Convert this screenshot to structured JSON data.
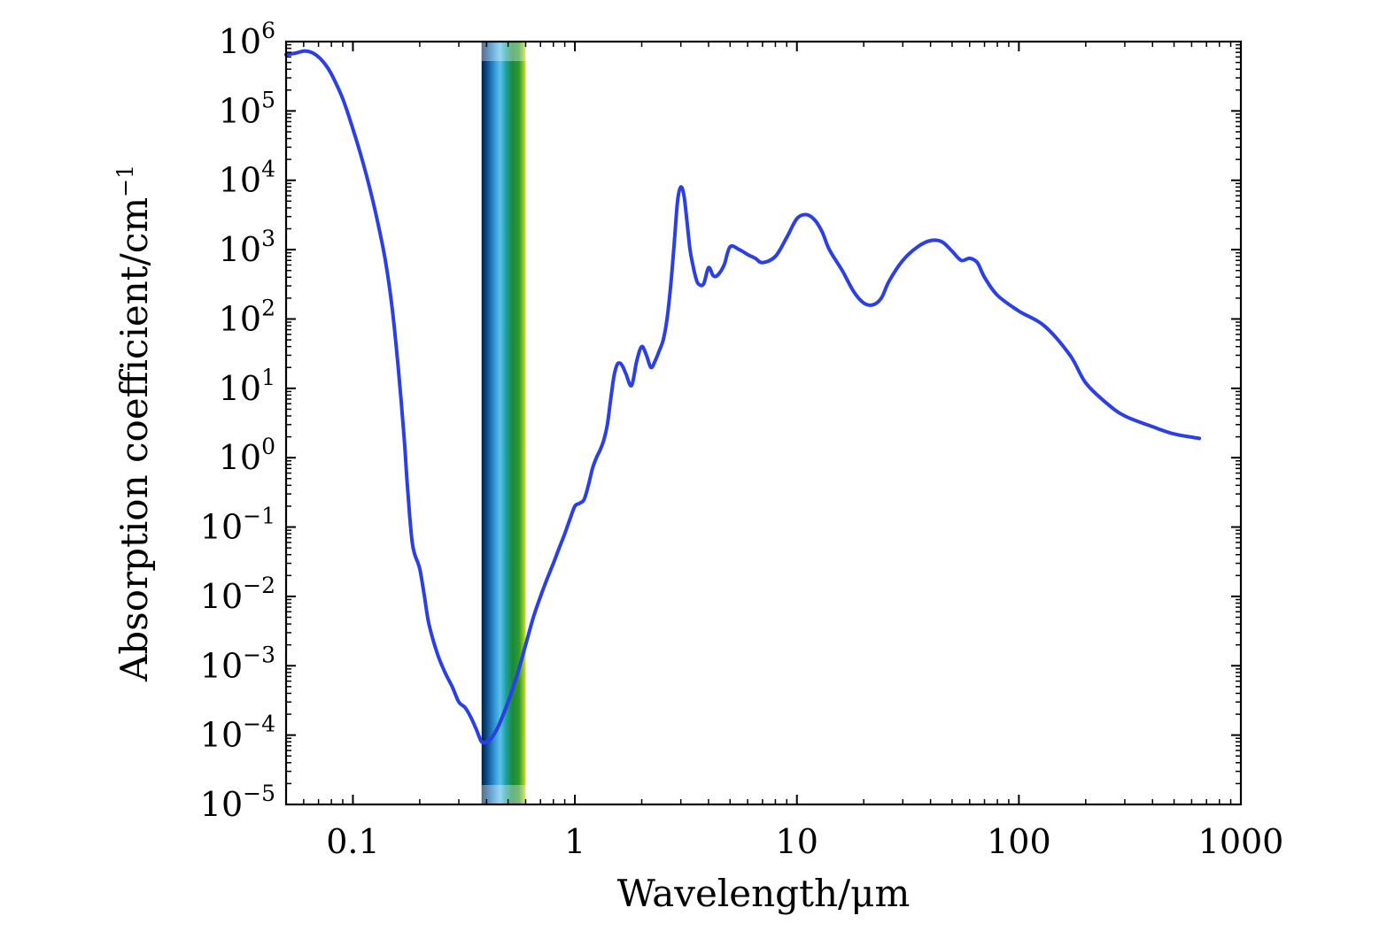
{
  "chart_data": {
    "type": "line",
    "title": "",
    "xlabel": "Wavelength/μm",
    "ylabel": "Absorption coefficient/cm",
    "ylabel_sup": "−1",
    "x_scale": "log",
    "y_scale": "log",
    "xlim": [
      0.05,
      1000
    ],
    "ylim": [
      1e-05,
      1000000
    ],
    "grid": false,
    "legend": "none",
    "x_ticks": [
      {
        "value": 0.1,
        "label": "0.1"
      },
      {
        "value": 1,
        "label": "1"
      },
      {
        "value": 10,
        "label": "10"
      },
      {
        "value": 100,
        "label": "100"
      },
      {
        "value": 1000,
        "label": "1000"
      }
    ],
    "y_ticks": [
      {
        "value": 1e-05,
        "base": "10",
        "exp": "−5"
      },
      {
        "value": 0.0001,
        "base": "10",
        "exp": "−4"
      },
      {
        "value": 0.001,
        "base": "10",
        "exp": "−3"
      },
      {
        "value": 0.01,
        "base": "10",
        "exp": "−2"
      },
      {
        "value": 0.1,
        "base": "10",
        "exp": "−1"
      },
      {
        "value": 1,
        "base": "10",
        "exp": "0"
      },
      {
        "value": 10,
        "base": "10",
        "exp": "1"
      },
      {
        "value": 100,
        "base": "10",
        "exp": "2"
      },
      {
        "value": 1000,
        "base": "10",
        "exp": "3"
      },
      {
        "value": 10000,
        "base": "10",
        "exp": "4"
      },
      {
        "value": 100000,
        "base": "10",
        "exp": "5"
      },
      {
        "value": 1000000,
        "base": "10",
        "exp": "6"
      }
    ],
    "visible_band": {
      "x_start": 0.38,
      "x_end": 0.6
    },
    "series": [
      {
        "color": "#2b3fe6",
        "x": [
          0.05,
          0.055,
          0.06,
          0.065,
          0.07,
          0.075,
          0.08,
          0.09,
          0.1,
          0.11,
          0.12,
          0.13,
          0.14,
          0.15,
          0.16,
          0.17,
          0.175,
          0.18,
          0.185,
          0.19,
          0.2,
          0.21,
          0.22,
          0.24,
          0.26,
          0.28,
          0.3,
          0.32,
          0.34,
          0.36,
          0.38,
          0.4,
          0.42,
          0.45,
          0.5,
          0.55,
          0.6,
          0.65,
          0.7,
          0.75,
          0.8,
          0.85,
          0.9,
          0.95,
          1.0,
          1.05,
          1.1,
          1.15,
          1.2,
          1.25,
          1.3,
          1.35,
          1.4,
          1.45,
          1.5,
          1.55,
          1.6,
          1.65,
          1.7,
          1.8,
          1.9,
          2.0,
          2.1,
          2.2,
          2.3,
          2.4,
          2.5,
          2.6,
          2.7,
          2.8,
          2.9,
          3.0,
          3.1,
          3.2,
          3.3,
          3.4,
          3.5,
          3.6,
          3.8,
          4.0,
          4.2,
          4.4,
          4.7,
          5.0,
          5.5,
          6.0,
          6.5,
          7.0,
          8.0,
          9.0,
          10.0,
          11.0,
          12.0,
          13.0,
          14.0,
          16.0,
          18.0,
          20.0,
          22.0,
          24.0,
          26.0,
          30.0,
          35.0,
          40.0,
          45.0,
          50.0,
          55.0,
          60.0,
          65.0,
          70.0,
          80.0,
          100.0,
          130.0,
          170.0,
          200.0,
          250.0,
          300.0,
          400.0,
          500.0,
          650.0
        ],
        "y": [
          650000,
          680000,
          730000,
          700000,
          600000,
          470000,
          340000,
          150000,
          55000,
          20000,
          7000,
          2300,
          700,
          150,
          20,
          2,
          0.5,
          0.15,
          0.06,
          0.04,
          0.025,
          0.01,
          0.004,
          0.0015,
          0.0008,
          0.0005,
          0.0003,
          0.00025,
          0.00018,
          0.00012,
          8e-05,
          8e-05,
          9e-05,
          0.00013,
          0.0003,
          0.00075,
          0.002,
          0.005,
          0.01,
          0.018,
          0.03,
          0.05,
          0.08,
          0.13,
          0.2,
          0.22,
          0.25,
          0.4,
          0.7,
          1.0,
          1.3,
          1.8,
          3.0,
          7.0,
          15.0,
          22.0,
          23.0,
          20.0,
          16.0,
          11.0,
          25.0,
          40.0,
          30.0,
          20.0,
          25.0,
          35.0,
          50.0,
          100.0,
          300.0,
          1200.0,
          5000.0,
          8000.0,
          6000.0,
          2500.0,
          1000.0,
          600.0,
          400.0,
          320.0,
          320.0,
          550.0,
          420.0,
          430.0,
          600.0,
          1100.0,
          1000.0,
          850.0,
          750.0,
          650.0,
          800.0,
          1500.0,
          2800.0,
          3200.0,
          2700.0,
          1800.0,
          1000.0,
          500.0,
          250.0,
          170.0,
          160.0,
          200.0,
          350.0,
          700.0,
          1100.0,
          1350.0,
          1300.0,
          950.0,
          700.0,
          750.0,
          650.0,
          400.0,
          220.0,
          130.0,
          80.0,
          30.0,
          12.0,
          6.0,
          4.0,
          2.8,
          2.2,
          1.9
        ]
      }
    ]
  }
}
